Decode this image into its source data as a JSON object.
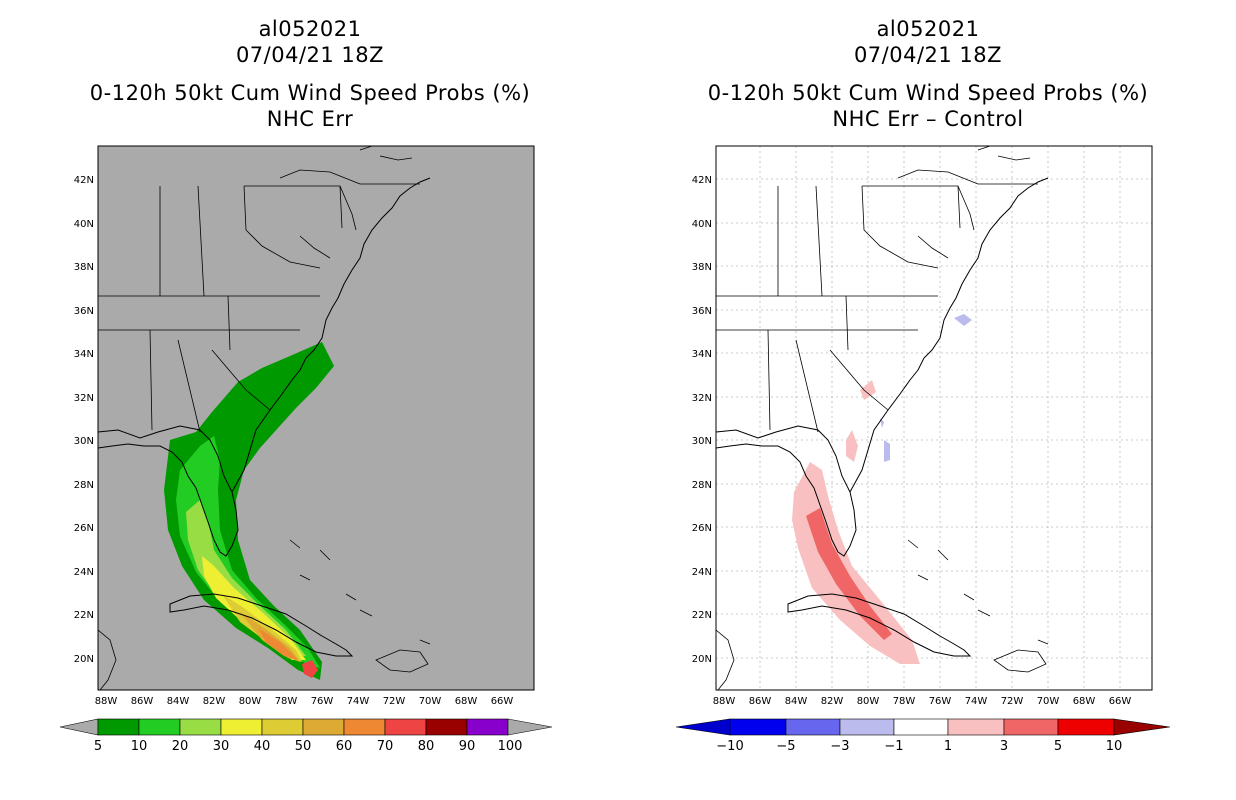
{
  "panels": [
    {
      "storm_id": "al052021",
      "datetime": "07/04/21 18Z",
      "product": "0-120h 50kt Cum Wind Speed Probs (%)",
      "subtitle": "NHC Err",
      "lat_labels": [
        "42N",
        "40N",
        "38N",
        "36N",
        "34N",
        "32N",
        "30N",
        "28N",
        "26N",
        "24N",
        "22N",
        "20N"
      ],
      "lon_labels": [
        "88W",
        "86W",
        "84W",
        "82W",
        "80W",
        "78W",
        "76W",
        "74W",
        "72W",
        "70W",
        "68W",
        "66W"
      ],
      "colorbar": {
        "labels": [
          "5",
          "10",
          "20",
          "30",
          "40",
          "50",
          "60",
          "70",
          "80",
          "90",
          "100"
        ],
        "colors": [
          "#009900",
          "#22cc22",
          "#99dd44",
          "#eeee33",
          "#ddcc33",
          "#ddaa33",
          "#ee8833",
          "#ee4444",
          "#990000",
          "#8800cc"
        ]
      }
    },
    {
      "storm_id": "al052021",
      "datetime": "07/04/21 18Z",
      "product": "0-120h 50kt Cum Wind Speed Probs (%)",
      "subtitle": "NHC Err – Control",
      "lat_labels": [
        "42N",
        "40N",
        "38N",
        "36N",
        "34N",
        "32N",
        "30N",
        "28N",
        "26N",
        "24N",
        "22N",
        "20N"
      ],
      "lon_labels": [
        "88W",
        "86W",
        "84W",
        "82W",
        "80W",
        "78W",
        "76W",
        "74W",
        "72W",
        "70W",
        "68W",
        "66W"
      ],
      "colorbar": {
        "labels": [
          "−10",
          "−5",
          "−3",
          "−1",
          "1",
          "3",
          "5",
          "10"
        ],
        "colors": [
          "#0000cc",
          "#0000ee",
          "#6666ee",
          "#bbbbee",
          "#ffffff",
          "#f8c0c0",
          "#f06666",
          "#ee0000",
          "#dd0000",
          "#990000"
        ]
      }
    }
  ],
  "colors": {
    "land_bg": "#aaaaaa",
    "diff_bg": "#ffffff"
  }
}
